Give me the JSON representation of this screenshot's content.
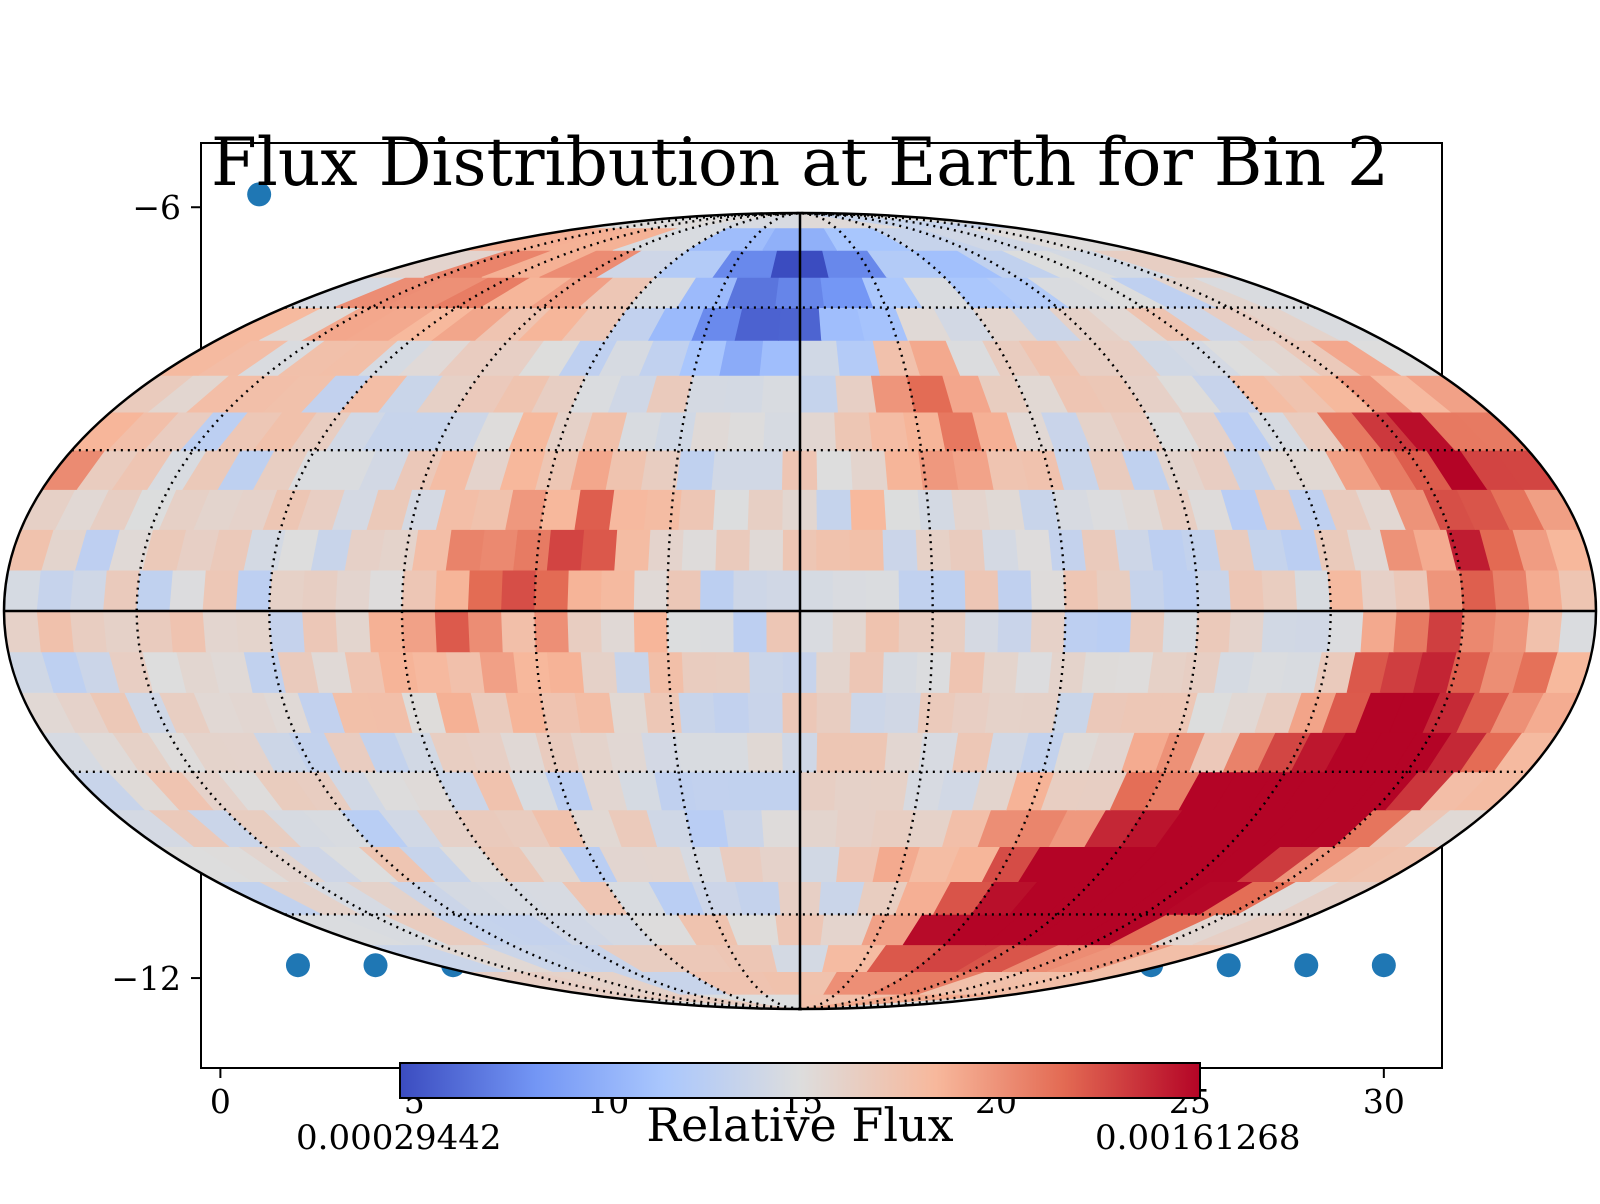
{
  "chart_data": {
    "type": "heatmap",
    "projection": "mollweide",
    "title": "Flux Distribution at Earth for Bin 2",
    "colorbar": {
      "label": "Relative Flux",
      "min_label": "0.00029442",
      "max_label": "0.00161268",
      "colormap": "coolwarm",
      "colors": [
        "#3b4cc0",
        "#7396f5",
        "#aac7fd",
        "#dddddd",
        "#f7b89c",
        "#e36a53",
        "#b40426"
      ]
    },
    "graticule": {
      "meridian_step_deg": 30,
      "parallel_step_deg": 30,
      "line_style": "dotted"
    },
    "hotspots": [
      {
        "lon": 0,
        "lat": 65,
        "level": -1.0
      },
      {
        "lon": 30,
        "lat": 40,
        "level": 0.55
      },
      {
        "lon": 160,
        "lat": 25,
        "level": 1.0
      },
      {
        "lon": -55,
        "lat": 12,
        "level": 0.6
      },
      {
        "lon": -80,
        "lat": -5,
        "level": 0.45
      },
      {
        "lon": 150,
        "lat": -15,
        "level": 0.85
      },
      {
        "lon": 135,
        "lat": -35,
        "level": 0.9
      },
      {
        "lon": 115,
        "lat": -45,
        "level": 0.85
      },
      {
        "lon": 90,
        "lat": -55,
        "level": 0.75
      },
      {
        "lon": 65,
        "lat": -62,
        "level": 0.6
      },
      {
        "lon": -120,
        "lat": 70,
        "level": 0.5
      }
    ],
    "background_axes": {
      "x_ticks": [
        0,
        5,
        10,
        15,
        20,
        25,
        30
      ],
      "y_ticks": [
        -6,
        -12
      ],
      "xlim": [
        -0.5,
        31.5
      ],
      "ylim": [
        -12.7,
        -5.5
      ],
      "series": [
        {
          "type": "scatter",
          "color": "#1f77b4",
          "x": [
            1,
            2,
            4,
            6,
            8,
            10,
            12,
            14,
            16,
            18,
            20,
            22,
            24,
            26,
            28,
            30
          ],
          "y": [
            -5.9,
            -11.9,
            -11.9,
            -11.9,
            -11.9,
            -11.9,
            -11.9,
            -11.9,
            -11.9,
            -11.9,
            -11.9,
            -11.9,
            -11.9,
            -11.9,
            -11.9,
            -11.9
          ]
        }
      ]
    }
  }
}
